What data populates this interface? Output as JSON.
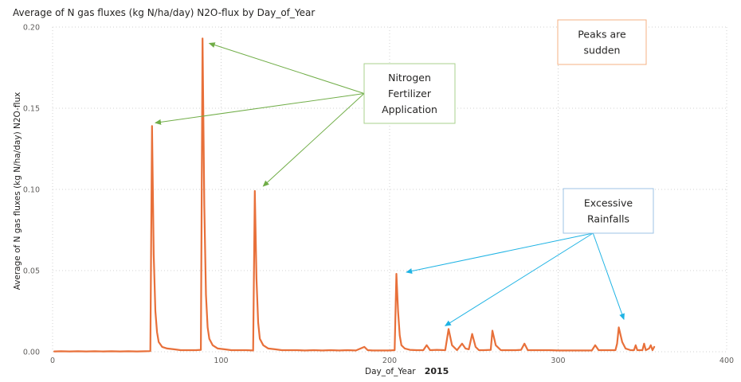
{
  "chart_data": {
    "type": "line",
    "title": "Average of N gas fluxes (kg N/ha/day) N2O-flux by Day_of_Year",
    "xlabel": "Day_of_Year",
    "xlabel_suffix": "2015",
    "ylabel": "Average of N gas fluxes (kg N/ha/day) N2O-flux",
    "xlim": [
      0,
      400
    ],
    "ylim": [
      0,
      0.2
    ],
    "x_ticks": [
      "0",
      "100",
      "200",
      "300",
      "400"
    ],
    "y_ticks": [
      "0.00",
      "0.05",
      "0.10",
      "0.15",
      "0.20"
    ],
    "grid": "dotted",
    "line_color": "#e8703a",
    "series": [
      {
        "x": [
          1,
          5,
          10,
          15,
          20,
          25,
          30,
          35,
          40,
          45,
          50,
          55,
          58,
          59,
          60,
          61,
          62,
          63,
          65,
          68,
          72,
          76,
          80,
          85,
          88,
          89,
          90,
          91,
          92,
          93,
          95,
          98,
          102,
          106,
          110,
          115,
          119,
          120,
          121,
          122,
          123,
          125,
          128,
          132,
          136,
          140,
          145,
          150,
          155,
          160,
          165,
          170,
          175,
          180,
          185,
          187,
          190,
          195,
          200,
          203,
          204,
          205,
          206,
          207,
          209,
          212,
          216,
          220,
          222,
          224,
          228,
          233,
          235,
          237,
          240,
          243,
          245,
          247,
          249,
          251,
          253,
          256,
          260,
          261,
          263,
          266,
          270,
          275,
          278,
          280,
          282,
          286,
          290,
          295,
          300,
          305,
          310,
          315,
          320,
          322,
          324,
          328,
          332,
          334,
          335,
          336,
          338,
          340,
          343,
          345,
          346,
          347,
          349,
          350,
          351,
          352,
          354,
          355,
          356,
          357
        ],
        "y": [
          0.0002,
          0.0003,
          0.0002,
          0.0003,
          0.0002,
          0.0003,
          0.0002,
          0.0003,
          0.0002,
          0.0003,
          0.0002,
          0.0003,
          0.0004,
          0.139,
          0.06,
          0.025,
          0.012,
          0.006,
          0.003,
          0.002,
          0.0015,
          0.001,
          0.001,
          0.001,
          0.0012,
          0.193,
          0.09,
          0.035,
          0.015,
          0.008,
          0.004,
          0.002,
          0.0015,
          0.001,
          0.001,
          0.001,
          0.0008,
          0.099,
          0.045,
          0.018,
          0.008,
          0.004,
          0.002,
          0.0015,
          0.001,
          0.001,
          0.001,
          0.0008,
          0.001,
          0.0008,
          0.001,
          0.0008,
          0.001,
          0.0008,
          0.003,
          0.001,
          0.0008,
          0.0008,
          0.0008,
          0.001,
          0.048,
          0.025,
          0.01,
          0.004,
          0.002,
          0.0012,
          0.001,
          0.001,
          0.004,
          0.001,
          0.0012,
          0.001,
          0.014,
          0.004,
          0.001,
          0.005,
          0.002,
          0.0015,
          0.011,
          0.003,
          0.001,
          0.001,
          0.0012,
          0.013,
          0.004,
          0.001,
          0.001,
          0.001,
          0.0012,
          0.005,
          0.001,
          0.001,
          0.001,
          0.001,
          0.0008,
          0.0008,
          0.0008,
          0.0008,
          0.0008,
          0.004,
          0.001,
          0.001,
          0.001,
          0.001,
          0.005,
          0.015,
          0.006,
          0.002,
          0.001,
          0.001,
          0.004,
          0.001,
          0.001,
          0.001,
          0.005,
          0.001,
          0.002,
          0.004,
          0.001,
          0.003
        ]
      }
    ],
    "annotations": [
      {
        "id": "nitrogen",
        "lines": [
          "Nitrogen",
          "Fertilizer",
          "Application"
        ],
        "border_color": "#a9d18e",
        "arrow_color": "#70ad47",
        "targets": [
          [
            61,
            0.141
          ],
          [
            93,
            0.19
          ],
          [
            125,
            0.102
          ]
        ]
      },
      {
        "id": "rainfall",
        "lines": [
          "Excessive",
          "Rainfalls"
        ],
        "border_color": "#9dc3e6",
        "arrow_color": "#1fb3e4",
        "targets": [
          [
            210,
            0.049
          ],
          [
            233,
            0.016
          ],
          [
            339,
            0.02
          ]
        ]
      },
      {
        "id": "peaks",
        "lines": [
          "Peaks are",
          "sudden"
        ],
        "border_color": "#f4b183",
        "arrow_color": "",
        "targets": []
      }
    ]
  }
}
